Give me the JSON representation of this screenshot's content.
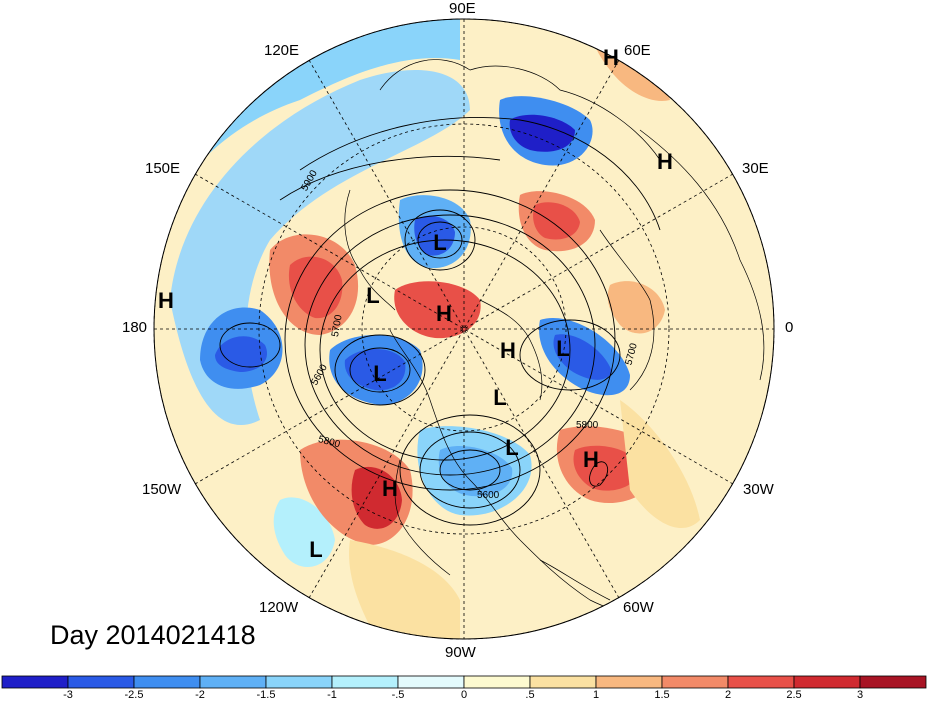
{
  "title": "Day 2014021418",
  "longitude_labels": {
    "lon_90e": "90E",
    "lon_60e": "60E",
    "lon_30e": "30E",
    "lon_0": "0",
    "lon_30w": "30W",
    "lon_60w": "60W",
    "lon_90w": "90W",
    "lon_120w": "120W",
    "lon_150w": "150W",
    "lon_180": "180",
    "lon_150e": "150E",
    "lon_120e": "120E"
  },
  "pressure_centers": [
    "H",
    "H",
    "L",
    "H",
    "L",
    "H",
    "H",
    "L",
    "L",
    "L",
    "L",
    "H",
    "H",
    "L"
  ],
  "contour_labels": [
    "5900",
    "5700",
    "5600",
    "5800",
    "5800",
    "5700",
    "5600"
  ],
  "colorbar": {
    "colors": [
      "#1f1fc8",
      "#2a5ae6",
      "#3f8ef0",
      "#5fb0f5",
      "#8ad4fa",
      "#b4f0fc",
      "#e4fbfd",
      "#fdfad0",
      "#fbe1a2",
      "#f8b880",
      "#f28a68",
      "#e85048",
      "#d02a30",
      "#a81424"
    ],
    "tick_labels": [
      "-3",
      "-2.5",
      "-2",
      "-1.5",
      "-1",
      "-.5",
      "0",
      ".5",
      "1",
      "1.5",
      "2",
      "2.5",
      "3"
    ]
  }
}
